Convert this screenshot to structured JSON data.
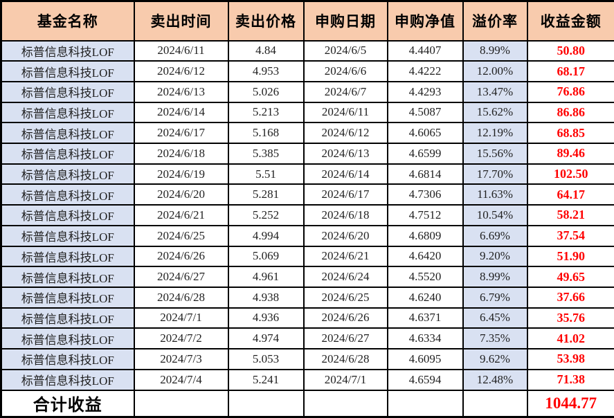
{
  "colors": {
    "header_bg": "#F8CBAD",
    "highlight_bg": "#D9E1F2",
    "profit_text": "#FF0000",
    "border": "#000000"
  },
  "table": {
    "headers": [
      "基金名称",
      "卖出时间",
      "卖出价格",
      "申购日期",
      "申购净值",
      "溢价率",
      "收益金额"
    ],
    "rows": [
      {
        "fund_name": "标普信息科技LOF",
        "sell_date": "2024/6/11",
        "sell_price": "4.84",
        "buy_date": "2024/6/5",
        "buy_nav": "4.4407",
        "premium": "8.99%",
        "profit": "50.80"
      },
      {
        "fund_name": "标普信息科技LOF",
        "sell_date": "2024/6/12",
        "sell_price": "4.953",
        "buy_date": "2024/6/6",
        "buy_nav": "4.4222",
        "premium": "12.00%",
        "profit": "68.17"
      },
      {
        "fund_name": "标普信息科技LOF",
        "sell_date": "2024/6/13",
        "sell_price": "5.026",
        "buy_date": "2024/6/7",
        "buy_nav": "4.4293",
        "premium": "13.47%",
        "profit": "76.86"
      },
      {
        "fund_name": "标普信息科技LOF",
        "sell_date": "2024/6/14",
        "sell_price": "5.213",
        "buy_date": "2024/6/11",
        "buy_nav": "4.5087",
        "premium": "15.62%",
        "profit": "86.86"
      },
      {
        "fund_name": "标普信息科技LOF",
        "sell_date": "2024/6/17",
        "sell_price": "5.168",
        "buy_date": "2024/6/12",
        "buy_nav": "4.6065",
        "premium": "12.19%",
        "profit": "68.85"
      },
      {
        "fund_name": "标普信息科技LOF",
        "sell_date": "2024/6/18",
        "sell_price": "5.385",
        "buy_date": "2024/6/13",
        "buy_nav": "4.6599",
        "premium": "15.56%",
        "profit": "89.46"
      },
      {
        "fund_name": "标普信息科技LOF",
        "sell_date": "2024/6/19",
        "sell_price": "5.51",
        "buy_date": "2024/6/14",
        "buy_nav": "4.6814",
        "premium": "17.70%",
        "profit": "102.50"
      },
      {
        "fund_name": "标普信息科技LOF",
        "sell_date": "2024/6/20",
        "sell_price": "5.281",
        "buy_date": "2024/6/17",
        "buy_nav": "4.7306",
        "premium": "11.63%",
        "profit": "64.17"
      },
      {
        "fund_name": "标普信息科技LOF",
        "sell_date": "2024/6/21",
        "sell_price": "5.252",
        "buy_date": "2024/6/18",
        "buy_nav": "4.7512",
        "premium": "10.54%",
        "profit": "58.21"
      },
      {
        "fund_name": "标普信息科技LOF",
        "sell_date": "2024/6/25",
        "sell_price": "4.994",
        "buy_date": "2024/6/20",
        "buy_nav": "4.6809",
        "premium": "6.69%",
        "profit": "37.54"
      },
      {
        "fund_name": "标普信息科技LOF",
        "sell_date": "2024/6/26",
        "sell_price": "5.069",
        "buy_date": "2024/6/21",
        "buy_nav": "4.6420",
        "premium": "9.20%",
        "profit": "51.90"
      },
      {
        "fund_name": "标普信息科技LOF",
        "sell_date": "2024/6/27",
        "sell_price": "4.961",
        "buy_date": "2024/6/24",
        "buy_nav": "4.5520",
        "premium": "8.99%",
        "profit": "49.65"
      },
      {
        "fund_name": "标普信息科技LOF",
        "sell_date": "2024/6/28",
        "sell_price": "4.938",
        "buy_date": "2024/6/25",
        "buy_nav": "4.6240",
        "premium": "6.79%",
        "profit": "37.66"
      },
      {
        "fund_name": "标普信息科技LOF",
        "sell_date": "2024/7/1",
        "sell_price": "4.936",
        "buy_date": "2024/6/26",
        "buy_nav": "4.6371",
        "premium": "6.45%",
        "profit": "35.76"
      },
      {
        "fund_name": "标普信息科技LOF",
        "sell_date": "2024/7/2",
        "sell_price": "4.974",
        "buy_date": "2024/6/27",
        "buy_nav": "4.6334",
        "premium": "7.35%",
        "profit": "41.02"
      },
      {
        "fund_name": "标普信息科技LOF",
        "sell_date": "2024/7/3",
        "sell_price": "5.053",
        "buy_date": "2024/6/28",
        "buy_nav": "4.6095",
        "premium": "9.62%",
        "profit": "53.98"
      },
      {
        "fund_name": "标普信息科技LOF",
        "sell_date": "2024/7/4",
        "sell_price": "5.241",
        "buy_date": "2024/7/1",
        "buy_nav": "4.6594",
        "premium": "12.48%",
        "profit": "71.38"
      }
    ],
    "footer": {
      "label": "合计收益",
      "total": "1044.77"
    }
  }
}
